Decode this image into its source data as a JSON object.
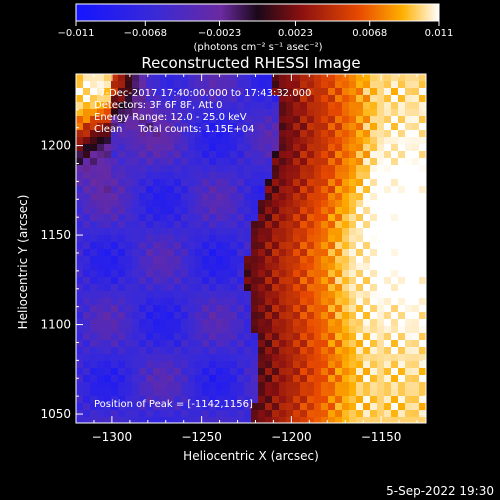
{
  "chart_data": {
    "type": "heatmap",
    "title": "Reconstructed RHESSI Image",
    "xlabel": "Heliocentric X (arcsec)",
    "ylabel": "Heliocentric Y (arcsec)",
    "xlim": [
      -1320,
      -1125
    ],
    "ylim": [
      1045,
      1240
    ],
    "x_ticks": [
      -1300,
      -1250,
      -1200,
      -1150
    ],
    "x_tick_labels": [
      "−1300",
      "−1250",
      "−1200",
      "−1150"
    ],
    "y_ticks": [
      1050,
      1100,
      1150,
      1200
    ],
    "y_tick_labels": [
      "1050",
      "1100",
      "1150",
      "1200"
    ],
    "colorbar": {
      "range": [
        -0.011,
        0.011
      ],
      "ticks": [
        -0.011,
        -0.0068,
        -0.0023,
        0.0023,
        0.0068,
        0.011
      ],
      "tick_labels": [
        "−0.011",
        "−0.0068",
        "−0.0023",
        "0.0023",
        "0.0068",
        "0.011"
      ],
      "unit_label": "(photons cm⁻² s⁻¹ asec⁻²)"
    },
    "info_lines": [
      "7-Dec-2017 17:40:00.000 to 17:43:32.000",
      "Detectors: 3F 6F 8F, Att 0",
      "Energy Range: 12.0 - 25.0 keV",
      "Clean     Total counts: 1.15E+04"
    ],
    "peak_label": "Position of Peak = [-1142,1156]",
    "peak_position": [
      -1142,
      1156
    ],
    "timestamp": "5-Sep-2022 19:30"
  }
}
